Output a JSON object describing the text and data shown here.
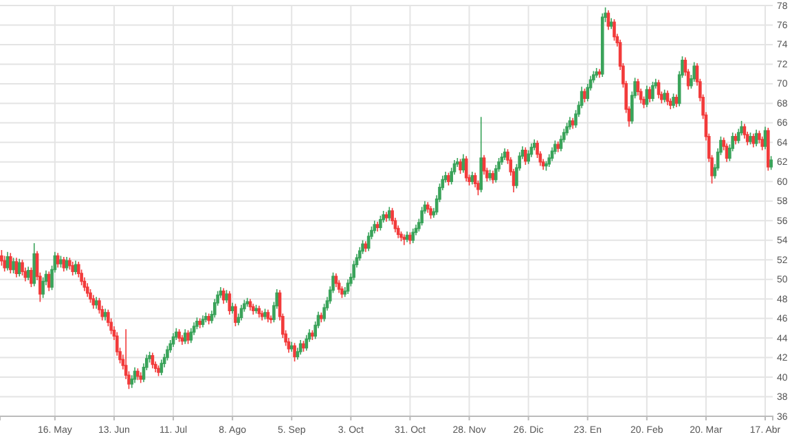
{
  "chart_data": {
    "type": "candlestick",
    "categories": [
      null,
      null,
      null,
      null,
      null,
      null,
      null,
      null,
      null,
      null,
      null,
      null,
      null,
      null,
      null,
      null,
      null,
      null,
      "16. May",
      null,
      null,
      null,
      null,
      null,
      null,
      null,
      null,
      null,
      null,
      null,
      null,
      null,
      null,
      null,
      null,
      null,
      null,
      null,
      "13. Jun",
      null,
      null,
      null,
      null,
      null,
      null,
      null,
      null,
      null,
      null,
      null,
      null,
      null,
      null,
      null,
      null,
      null,
      null,
      null,
      "11. Jul",
      null,
      null,
      null,
      null,
      null,
      null,
      null,
      null,
      null,
      null,
      null,
      null,
      null,
      null,
      null,
      null,
      null,
      null,
      null,
      "8. Ago",
      null,
      null,
      null,
      null,
      null,
      null,
      null,
      null,
      null,
      null,
      null,
      null,
      null,
      null,
      null,
      null,
      null,
      null,
      null,
      "5. Sep",
      null,
      null,
      null,
      null,
      null,
      null,
      null,
      null,
      null,
      null,
      null,
      null,
      null,
      null,
      null,
      null,
      null,
      null,
      null,
      "3. Oct",
      null,
      null,
      null,
      null,
      null,
      null,
      null,
      null,
      null,
      null,
      null,
      null,
      null,
      null,
      null,
      null,
      null,
      null,
      null,
      "31. Oct",
      null,
      null,
      null,
      null,
      null,
      null,
      null,
      null,
      null,
      null,
      null,
      null,
      null,
      null,
      null,
      null,
      null,
      null,
      null,
      "28. Nov",
      null,
      null,
      null,
      null,
      null,
      null,
      null,
      null,
      null,
      null,
      null,
      null,
      null,
      null,
      null,
      null,
      null,
      null,
      null,
      "26. Dic",
      null,
      null,
      null,
      null,
      null,
      null,
      null,
      null,
      null,
      null,
      null,
      null,
      null,
      null,
      null,
      null,
      null,
      null,
      null,
      "23. En",
      null,
      null,
      null,
      null,
      null,
      null,
      null,
      null,
      null,
      null,
      null,
      null,
      null,
      null,
      null,
      null,
      null,
      null,
      null,
      "20. Feb",
      null,
      null,
      null,
      null,
      null,
      null,
      null,
      null,
      null,
      null,
      null,
      null,
      null,
      null,
      null,
      null,
      null,
      null,
      null,
      "20. Mar",
      null,
      null,
      null,
      null,
      null,
      null,
      null,
      null,
      null,
      null,
      null,
      null,
      null,
      null,
      null,
      null,
      null,
      null,
      null,
      "17. Abr",
      null,
      null
    ],
    "ohlc": [
      [
        52.4,
        53.0,
        51.4,
        51.9
      ],
      [
        51.9,
        52.4,
        50.8,
        51.2
      ],
      [
        51.2,
        52.8,
        50.9,
        52.3
      ],
      [
        52.3,
        52.7,
        50.6,
        51.0
      ],
      [
        51.0,
        52.2,
        50.6,
        51.8
      ],
      [
        51.8,
        52.2,
        50.2,
        50.6
      ],
      [
        50.6,
        52.1,
        50.3,
        51.7
      ],
      [
        51.7,
        52.0,
        50.4,
        50.8
      ],
      [
        50.8,
        51.2,
        49.8,
        50.2
      ],
      [
        50.2,
        51.3,
        49.9,
        50.9
      ],
      [
        50.9,
        51.2,
        49.2,
        49.6
      ],
      [
        49.6,
        53.7,
        49.3,
        52.6
      ],
      [
        52.6,
        52.9,
        49.9,
        50.3
      ],
      [
        50.3,
        50.7,
        47.7,
        48.5
      ],
      [
        48.5,
        50.2,
        48.1,
        49.8
      ],
      [
        49.8,
        50.9,
        49.4,
        50.5
      ],
      [
        50.5,
        50.8,
        48.8,
        49.2
      ],
      [
        49.2,
        51.4,
        48.9,
        51.0
      ],
      [
        51.0,
        52.8,
        50.7,
        52.4
      ],
      [
        52.4,
        52.7,
        51.2,
        51.6
      ],
      [
        51.6,
        52.4,
        51.2,
        52.0
      ],
      [
        52.0,
        52.3,
        50.8,
        51.2
      ],
      [
        51.2,
        52.3,
        50.9,
        51.9
      ],
      [
        51.9,
        52.2,
        51.0,
        51.4
      ],
      [
        51.4,
        51.8,
        50.4,
        50.8
      ],
      [
        50.8,
        51.9,
        50.5,
        51.5
      ],
      [
        51.5,
        51.8,
        50.2,
        50.6
      ],
      [
        50.6,
        51.0,
        49.4,
        49.8
      ],
      [
        49.8,
        50.2,
        48.8,
        49.2
      ],
      [
        49.2,
        49.6,
        48.2,
        48.6
      ],
      [
        48.6,
        49.0,
        47.6,
        48.0
      ],
      [
        48.0,
        48.4,
        47.0,
        47.4
      ],
      [
        47.4,
        48.2,
        47.0,
        47.8
      ],
      [
        47.8,
        48.1,
        46.5,
        46.9
      ],
      [
        46.9,
        47.3,
        45.8,
        46.2
      ],
      [
        46.2,
        47.0,
        45.8,
        46.6
      ],
      [
        46.6,
        46.9,
        45.2,
        45.6
      ],
      [
        45.6,
        46.0,
        44.4,
        44.8
      ],
      [
        44.8,
        45.2,
        43.8,
        44.2
      ],
      [
        44.2,
        44.6,
        42.2,
        42.6
      ],
      [
        42.6,
        43.0,
        41.4,
        41.8
      ],
      [
        41.8,
        42.3,
        40.8,
        41.2
      ],
      [
        41.2,
        44.9,
        39.8,
        40.2
      ],
      [
        40.2,
        40.6,
        38.8,
        39.3
      ],
      [
        39.3,
        40.2,
        38.9,
        39.8
      ],
      [
        39.8,
        41.0,
        39.4,
        40.6
      ],
      [
        40.6,
        40.9,
        39.7,
        40.1
      ],
      [
        40.1,
        40.5,
        39.4,
        39.8
      ],
      [
        39.8,
        41.4,
        39.5,
        41.0
      ],
      [
        41.0,
        42.3,
        40.7,
        41.9
      ],
      [
        41.9,
        42.6,
        41.5,
        42.2
      ],
      [
        42.2,
        42.5,
        40.9,
        41.3
      ],
      [
        41.3,
        41.6,
        40.5,
        40.9
      ],
      [
        40.9,
        41.2,
        40.1,
        40.5
      ],
      [
        40.5,
        41.8,
        40.2,
        41.4
      ],
      [
        41.4,
        42.4,
        41.0,
        42.0
      ],
      [
        42.0,
        43.2,
        41.7,
        42.8
      ],
      [
        42.8,
        43.8,
        42.5,
        43.4
      ],
      [
        43.4,
        44.5,
        43.1,
        44.1
      ],
      [
        44.1,
        45.0,
        43.8,
        44.6
      ],
      [
        44.6,
        44.9,
        43.6,
        44.0
      ],
      [
        44.0,
        44.3,
        43.3,
        43.7
      ],
      [
        43.7,
        44.9,
        43.4,
        44.5
      ],
      [
        44.5,
        44.8,
        43.4,
        43.8
      ],
      [
        43.8,
        45.0,
        43.5,
        44.6
      ],
      [
        44.6,
        45.6,
        44.3,
        45.2
      ],
      [
        45.2,
        46.1,
        44.9,
        45.7
      ],
      [
        45.7,
        46.0,
        45.0,
        45.4
      ],
      [
        45.4,
        46.3,
        45.1,
        45.9
      ],
      [
        45.9,
        46.6,
        45.6,
        46.2
      ],
      [
        46.2,
        46.5,
        45.4,
        45.8
      ],
      [
        45.8,
        46.8,
        45.5,
        46.4
      ],
      [
        46.4,
        48.0,
        46.1,
        47.6
      ],
      [
        47.6,
        48.8,
        47.3,
        48.4
      ],
      [
        48.4,
        49.2,
        48.1,
        48.8
      ],
      [
        48.8,
        49.1,
        47.5,
        47.9
      ],
      [
        47.9,
        48.9,
        47.6,
        48.5
      ],
      [
        48.5,
        48.8,
        46.4,
        46.8
      ],
      [
        46.8,
        47.6,
        46.5,
        47.2
      ],
      [
        47.2,
        47.5,
        45.2,
        45.6
      ],
      [
        45.6,
        46.5,
        45.3,
        46.1
      ],
      [
        46.1,
        47.4,
        45.8,
        47.0
      ],
      [
        47.0,
        47.9,
        46.7,
        47.5
      ],
      [
        47.5,
        48.1,
        47.2,
        47.7
      ],
      [
        47.7,
        48.0,
        46.8,
        47.2
      ],
      [
        47.2,
        47.5,
        46.4,
        46.8
      ],
      [
        46.8,
        47.4,
        46.5,
        47.0
      ],
      [
        47.0,
        47.3,
        46.1,
        46.5
      ],
      [
        46.5,
        46.8,
        45.8,
        46.2
      ],
      [
        46.2,
        47.0,
        45.9,
        46.6
      ],
      [
        46.6,
        46.9,
        45.6,
        46.0
      ],
      [
        46.0,
        46.3,
        45.5,
        45.9
      ],
      [
        45.9,
        47.7,
        45.6,
        47.3
      ],
      [
        47.3,
        49.0,
        47.0,
        48.6
      ],
      [
        48.6,
        48.9,
        45.8,
        46.2
      ],
      [
        46.2,
        46.5,
        44.0,
        44.4
      ],
      [
        44.4,
        44.8,
        43.2,
        43.6
      ],
      [
        43.6,
        44.0,
        42.5,
        42.9
      ],
      [
        42.9,
        43.6,
        42.6,
        43.2
      ],
      [
        43.2,
        43.5,
        41.6,
        42.1
      ],
      [
        42.1,
        43.0,
        41.8,
        42.6
      ],
      [
        42.6,
        43.8,
        42.3,
        43.4
      ],
      [
        43.4,
        43.7,
        42.6,
        43.0
      ],
      [
        43.0,
        44.3,
        42.7,
        43.9
      ],
      [
        43.9,
        44.9,
        43.6,
        44.5
      ],
      [
        44.5,
        44.8,
        43.8,
        44.2
      ],
      [
        44.2,
        45.7,
        43.9,
        45.3
      ],
      [
        45.3,
        46.7,
        45.0,
        46.3
      ],
      [
        46.3,
        46.6,
        45.6,
        46.0
      ],
      [
        46.0,
        47.5,
        45.7,
        47.1
      ],
      [
        47.1,
        48.2,
        46.8,
        47.8
      ],
      [
        47.8,
        49.3,
        47.5,
        48.9
      ],
      [
        48.9,
        50.7,
        48.6,
        50.3
      ],
      [
        50.3,
        50.6,
        49.2,
        49.6
      ],
      [
        49.6,
        49.9,
        48.6,
        49.0
      ],
      [
        49.0,
        49.3,
        48.1,
        48.5
      ],
      [
        48.5,
        49.2,
        48.2,
        48.8
      ],
      [
        48.8,
        50.0,
        48.5,
        49.6
      ],
      [
        49.6,
        50.6,
        49.3,
        50.2
      ],
      [
        50.2,
        51.9,
        49.9,
        51.5
      ],
      [
        51.5,
        52.6,
        51.2,
        52.2
      ],
      [
        52.2,
        53.3,
        51.9,
        52.9
      ],
      [
        52.9,
        54.0,
        52.6,
        53.6
      ],
      [
        53.6,
        53.9,
        52.8,
        53.2
      ],
      [
        53.2,
        54.8,
        52.9,
        54.4
      ],
      [
        54.4,
        55.4,
        54.1,
        55.0
      ],
      [
        55.0,
        56.0,
        54.7,
        55.6
      ],
      [
        55.6,
        55.9,
        54.9,
        55.3
      ],
      [
        55.3,
        56.5,
        55.0,
        56.1
      ],
      [
        56.1,
        57.0,
        55.8,
        56.6
      ],
      [
        56.6,
        56.9,
        55.9,
        56.3
      ],
      [
        56.3,
        57.4,
        56.0,
        57.0
      ],
      [
        57.0,
        57.3,
        55.6,
        56.0
      ],
      [
        56.0,
        56.3,
        54.8,
        55.2
      ],
      [
        55.2,
        55.5,
        54.2,
        54.6
      ],
      [
        54.6,
        54.9,
        53.9,
        54.3
      ],
      [
        54.3,
        54.6,
        53.5,
        54.1
      ],
      [
        54.1,
        54.9,
        53.8,
        54.5
      ],
      [
        54.5,
        54.8,
        53.6,
        54.0
      ],
      [
        54.0,
        55.2,
        53.7,
        54.8
      ],
      [
        54.8,
        55.6,
        54.5,
        55.2
      ],
      [
        55.2,
        56.2,
        54.9,
        55.8
      ],
      [
        55.8,
        57.4,
        55.5,
        57.0
      ],
      [
        57.0,
        58.0,
        56.7,
        57.6
      ],
      [
        57.6,
        57.9,
        56.8,
        57.2
      ],
      [
        57.2,
        57.5,
        56.2,
        56.6
      ],
      [
        56.6,
        57.3,
        56.3,
        56.9
      ],
      [
        56.9,
        58.6,
        56.6,
        58.2
      ],
      [
        58.2,
        59.8,
        57.9,
        59.4
      ],
      [
        59.4,
        60.6,
        59.1,
        60.2
      ],
      [
        60.2,
        61.0,
        59.9,
        60.6
      ],
      [
        60.6,
        60.9,
        59.6,
        60.0
      ],
      [
        60.0,
        61.4,
        59.7,
        61.0
      ],
      [
        61.0,
        62.2,
        60.7,
        61.8
      ],
      [
        61.8,
        62.4,
        61.5,
        62.0
      ],
      [
        62.0,
        62.3,
        60.8,
        61.2
      ],
      [
        61.2,
        62.8,
        60.9,
        62.3
      ],
      [
        62.3,
        62.6,
        60.0,
        60.4
      ],
      [
        60.4,
        60.7,
        59.6,
        60.0
      ],
      [
        60.0,
        61.0,
        59.7,
        60.6
      ],
      [
        60.6,
        60.9,
        59.4,
        59.8
      ],
      [
        59.8,
        60.1,
        58.6,
        59.2
      ],
      [
        59.2,
        66.6,
        58.9,
        62.4
      ],
      [
        62.4,
        62.7,
        60.7,
        61.1
      ],
      [
        61.1,
        61.4,
        60.0,
        60.4
      ],
      [
        60.4,
        61.2,
        60.1,
        60.8
      ],
      [
        60.8,
        61.1,
        59.8,
        60.2
      ],
      [
        60.2,
        61.7,
        59.9,
        61.3
      ],
      [
        61.3,
        62.4,
        61.0,
        62.0
      ],
      [
        62.0,
        62.9,
        61.7,
        62.5
      ],
      [
        62.5,
        63.4,
        62.2,
        63.0
      ],
      [
        63.0,
        63.3,
        61.8,
        62.2
      ],
      [
        62.2,
        62.5,
        60.6,
        61.0
      ],
      [
        61.0,
        61.3,
        58.9,
        59.6
      ],
      [
        59.6,
        61.8,
        59.3,
        61.4
      ],
      [
        61.4,
        63.0,
        61.1,
        62.6
      ],
      [
        62.6,
        63.6,
        62.3,
        63.2
      ],
      [
        63.2,
        63.5,
        61.7,
        62.1
      ],
      [
        62.1,
        63.2,
        61.8,
        62.8
      ],
      [
        62.8,
        63.9,
        62.5,
        63.5
      ],
      [
        63.5,
        64.3,
        63.2,
        63.9
      ],
      [
        63.9,
        64.2,
        62.4,
        62.8
      ],
      [
        62.8,
        63.1,
        61.6,
        62.0
      ],
      [
        62.0,
        62.3,
        61.2,
        61.6
      ],
      [
        61.6,
        62.1,
        61.1,
        61.8
      ],
      [
        61.8,
        62.8,
        61.5,
        62.4
      ],
      [
        62.4,
        63.5,
        62.1,
        63.1
      ],
      [
        63.1,
        64.2,
        62.8,
        63.8
      ],
      [
        63.8,
        64.1,
        63.0,
        63.4
      ],
      [
        63.4,
        64.7,
        63.1,
        64.3
      ],
      [
        64.3,
        65.4,
        64.0,
        65.0
      ],
      [
        65.0,
        66.0,
        64.7,
        65.6
      ],
      [
        65.6,
        66.6,
        65.3,
        66.2
      ],
      [
        66.2,
        66.5,
        65.4,
        65.8
      ],
      [
        65.8,
        67.3,
        65.5,
        66.9
      ],
      [
        66.9,
        68.2,
        66.6,
        67.8
      ],
      [
        67.8,
        69.7,
        67.5,
        69.2
      ],
      [
        69.2,
        69.5,
        68.1,
        68.5
      ],
      [
        68.5,
        70.0,
        68.2,
        69.6
      ],
      [
        69.6,
        70.8,
        69.3,
        70.4
      ],
      [
        70.4,
        71.3,
        70.1,
        70.9
      ],
      [
        70.9,
        71.6,
        70.6,
        71.2
      ],
      [
        71.2,
        71.5,
        70.6,
        71.0
      ],
      [
        71.0,
        77.2,
        70.7,
        76.8
      ],
      [
        76.8,
        77.8,
        76.3,
        77.2
      ],
      [
        77.2,
        77.5,
        75.5,
        75.9
      ],
      [
        75.9,
        76.7,
        75.6,
        76.3
      ],
      [
        76.3,
        76.6,
        74.4,
        74.8
      ],
      [
        74.8,
        75.1,
        73.8,
        74.2
      ],
      [
        74.2,
        74.5,
        71.4,
        71.8
      ],
      [
        71.8,
        72.1,
        69.6,
        70.0
      ],
      [
        70.0,
        70.3,
        67.0,
        67.4
      ],
      [
        67.4,
        67.7,
        65.6,
        66.2
      ],
      [
        66.2,
        69.2,
        65.9,
        68.8
      ],
      [
        68.8,
        70.6,
        68.5,
        70.2
      ],
      [
        70.2,
        70.5,
        68.8,
        69.2
      ],
      [
        69.2,
        69.5,
        68.0,
        68.4
      ],
      [
        68.4,
        68.7,
        67.5,
        67.9
      ],
      [
        67.9,
        69.8,
        67.6,
        69.4
      ],
      [
        69.4,
        69.7,
        68.1,
        68.5
      ],
      [
        68.5,
        70.2,
        68.2,
        69.8
      ],
      [
        69.8,
        70.5,
        69.5,
        70.1
      ],
      [
        70.1,
        70.4,
        68.5,
        68.9
      ],
      [
        68.9,
        69.2,
        68.0,
        68.4
      ],
      [
        68.4,
        69.4,
        68.1,
        69.0
      ],
      [
        69.0,
        69.3,
        67.8,
        68.2
      ],
      [
        68.2,
        68.5,
        67.4,
        67.8
      ],
      [
        67.8,
        69.0,
        67.5,
        68.6
      ],
      [
        68.6,
        68.9,
        67.6,
        68.0
      ],
      [
        68.0,
        71.3,
        67.7,
        70.9
      ],
      [
        70.9,
        72.8,
        70.6,
        72.4
      ],
      [
        72.4,
        72.7,
        70.8,
        71.2
      ],
      [
        71.2,
        71.5,
        69.4,
        69.8
      ],
      [
        69.8,
        70.9,
        69.5,
        70.5
      ],
      [
        70.5,
        72.2,
        70.2,
        71.8
      ],
      [
        71.8,
        72.1,
        69.8,
        70.2
      ],
      [
        70.2,
        70.5,
        68.2,
        68.6
      ],
      [
        68.6,
        68.9,
        66.4,
        66.8
      ],
      [
        66.8,
        67.1,
        64.2,
        64.6
      ],
      [
        64.6,
        64.9,
        62.0,
        62.4
      ],
      [
        62.4,
        62.7,
        59.8,
        60.6
      ],
      [
        60.6,
        61.8,
        60.3,
        61.4
      ],
      [
        61.4,
        63.4,
        61.1,
        63.0
      ],
      [
        63.0,
        64.6,
        62.7,
        64.2
      ],
      [
        64.2,
        64.5,
        63.2,
        63.6
      ],
      [
        63.6,
        63.9,
        62.0,
        62.4
      ],
      [
        62.4,
        63.8,
        62.1,
        63.4
      ],
      [
        63.4,
        65.0,
        63.1,
        64.6
      ],
      [
        64.6,
        64.9,
        63.8,
        64.2
      ],
      [
        64.2,
        65.4,
        63.9,
        65.0
      ],
      [
        65.0,
        66.2,
        64.7,
        65.6
      ],
      [
        65.6,
        65.9,
        64.4,
        64.8
      ],
      [
        64.8,
        65.1,
        63.7,
        64.1
      ],
      [
        64.1,
        65.0,
        63.8,
        64.6
      ],
      [
        64.6,
        64.9,
        63.5,
        63.9
      ],
      [
        63.9,
        65.3,
        63.6,
        64.9
      ],
      [
        64.9,
        65.2,
        63.9,
        64.3
      ],
      [
        64.3,
        64.6,
        63.2,
        63.6
      ],
      [
        63.6,
        65.6,
        63.3,
        65.2
      ],
      [
        65.2,
        65.5,
        61.1,
        61.5
      ],
      [
        61.5,
        62.6,
        61.2,
        62.2
      ]
    ],
    "colors": [
      "#f23b3b",
      "#f23b3b",
      "#3aa35a",
      "#f23b3b",
      "#3aa35a",
      "#f23b3b",
      "#3aa35a",
      "#f23b3b",
      "#f23b3b",
      "#3aa35a",
      "#f23b3b",
      "#3aa35a",
      "#f23b3b",
      "#f23b3b",
      "#3aa35a",
      "#3aa35a",
      "#f23b3b",
      "#3aa35a",
      "#3aa35a",
      "#f23b3b",
      "#3aa35a",
      "#f23b3b",
      "#3aa35a",
      "#f23b3b",
      "#f23b3b",
      "#3aa35a",
      "#f23b3b",
      "#f23b3b",
      "#f23b3b",
      "#f23b3b",
      "#f23b3b",
      "#f23b3b",
      "#3aa35a",
      "#f23b3b",
      "#f23b3b",
      "#3aa35a",
      "#f23b3b",
      "#f23b3b",
      "#f23b3b",
      "#f23b3b",
      "#f23b3b",
      "#f23b3b",
      "#f23b3b",
      "#f23b3b",
      "#3aa35a",
      "#3aa35a",
      "#f23b3b",
      "#f23b3b",
      "#3aa35a",
      "#3aa35a",
      "#3aa35a",
      "#f23b3b",
      "#f23b3b",
      "#f23b3b",
      "#3aa35a",
      "#3aa35a",
      "#3aa35a",
      "#3aa35a",
      "#3aa35a",
      "#3aa35a",
      "#f23b3b",
      "#f23b3b",
      "#3aa35a",
      "#f23b3b",
      "#3aa35a",
      "#3aa35a",
      "#3aa35a",
      "#f23b3b",
      "#3aa35a",
      "#3aa35a",
      "#f23b3b",
      "#3aa35a",
      "#3aa35a",
      "#3aa35a",
      "#3aa35a",
      "#f23b3b",
      "#3aa35a",
      "#f23b3b",
      "#3aa35a",
      "#f23b3b",
      "#3aa35a",
      "#3aa35a",
      "#3aa35a",
      "#3aa35a",
      "#f23b3b",
      "#f23b3b",
      "#3aa35a",
      "#f23b3b",
      "#f23b3b",
      "#3aa35a",
      "#f23b3b",
      "#f23b3b",
      "#3aa35a",
      "#3aa35a",
      "#f23b3b",
      "#f23b3b",
      "#f23b3b",
      "#f23b3b",
      "#3aa35a",
      "#f23b3b",
      "#3aa35a",
      "#3aa35a",
      "#f23b3b",
      "#3aa35a",
      "#3aa35a",
      "#f23b3b",
      "#3aa35a",
      "#3aa35a",
      "#f23b3b",
      "#3aa35a",
      "#3aa35a",
      "#3aa35a",
      "#3aa35a",
      "#f23b3b",
      "#f23b3b",
      "#f23b3b",
      "#3aa35a",
      "#3aa35a",
      "#3aa35a",
      "#3aa35a",
      "#3aa35a",
      "#3aa35a",
      "#3aa35a",
      "#f23b3b",
      "#3aa35a",
      "#3aa35a",
      "#3aa35a",
      "#f23b3b",
      "#3aa35a",
      "#3aa35a",
      "#f23b3b",
      "#3aa35a",
      "#f23b3b",
      "#f23b3b",
      "#f23b3b",
      "#f23b3b",
      "#f23b3b",
      "#3aa35a",
      "#f23b3b",
      "#3aa35a",
      "#3aa35a",
      "#3aa35a",
      "#3aa35a",
      "#3aa35a",
      "#f23b3b",
      "#f23b3b",
      "#3aa35a",
      "#3aa35a",
      "#3aa35a",
      "#3aa35a",
      "#3aa35a",
      "#f23b3b",
      "#3aa35a",
      "#3aa35a",
      "#3aa35a",
      "#f23b3b",
      "#3aa35a",
      "#f23b3b",
      "#f23b3b",
      "#3aa35a",
      "#f23b3b",
      "#f23b3b",
      "#3aa35a",
      "#f23b3b",
      "#f23b3b",
      "#3aa35a",
      "#f23b3b",
      "#3aa35a",
      "#3aa35a",
      "#3aa35a",
      "#3aa35a",
      "#f23b3b",
      "#f23b3b",
      "#f23b3b",
      "#3aa35a",
      "#3aa35a",
      "#3aa35a",
      "#f23b3b",
      "#3aa35a",
      "#3aa35a",
      "#3aa35a",
      "#f23b3b",
      "#f23b3b",
      "#f23b3b",
      "#3aa35a",
      "#3aa35a",
      "#3aa35a",
      "#3aa35a",
      "#f23b3b",
      "#3aa35a",
      "#3aa35a",
      "#3aa35a",
      "#3aa35a",
      "#f23b3b",
      "#3aa35a",
      "#3aa35a",
      "#3aa35a",
      "#f23b3b",
      "#3aa35a",
      "#3aa35a",
      "#3aa35a",
      "#3aa35a",
      "#f23b3b",
      "#3aa35a",
      "#3aa35a",
      "#f23b3b",
      "#3aa35a",
      "#f23b3b",
      "#f23b3b",
      "#f23b3b",
      "#f23b3b",
      "#f23b3b",
      "#f23b3b",
      "#3aa35a",
      "#3aa35a",
      "#f23b3b",
      "#f23b3b",
      "#f23b3b",
      "#3aa35a",
      "#f23b3b",
      "#3aa35a",
      "#3aa35a",
      "#f23b3b",
      "#f23b3b",
      "#3aa35a",
      "#f23b3b",
      "#f23b3b",
      "#3aa35a",
      "#f23b3b",
      "#3aa35a",
      "#3aa35a",
      "#f23b3b",
      "#f23b3b",
      "#3aa35a",
      "#3aa35a",
      "#f23b3b",
      "#f23b3b",
      "#f23b3b",
      "#f23b3b",
      "#f23b3b",
      "#f23b3b",
      "#3aa35a",
      "#3aa35a",
      "#3aa35a",
      "#f23b3b",
      "#f23b3b",
      "#3aa35a",
      "#3aa35a",
      "#f23b3b",
      "#3aa35a",
      "#3aa35a",
      "#f23b3b",
      "#f23b3b",
      "#3aa35a",
      "#f23b3b",
      "#3aa35a",
      "#f23b3b",
      "#f23b3b",
      "#3aa35a",
      "#f23b3b",
      "#3aa35a"
    ],
    "ylim": [
      36,
      78
    ],
    "yticks": [
      36,
      38,
      40,
      42,
      44,
      46,
      48,
      50,
      52,
      54,
      56,
      58,
      60,
      62,
      64,
      66,
      68,
      70,
      72,
      74,
      76,
      78
    ],
    "grid": true
  }
}
